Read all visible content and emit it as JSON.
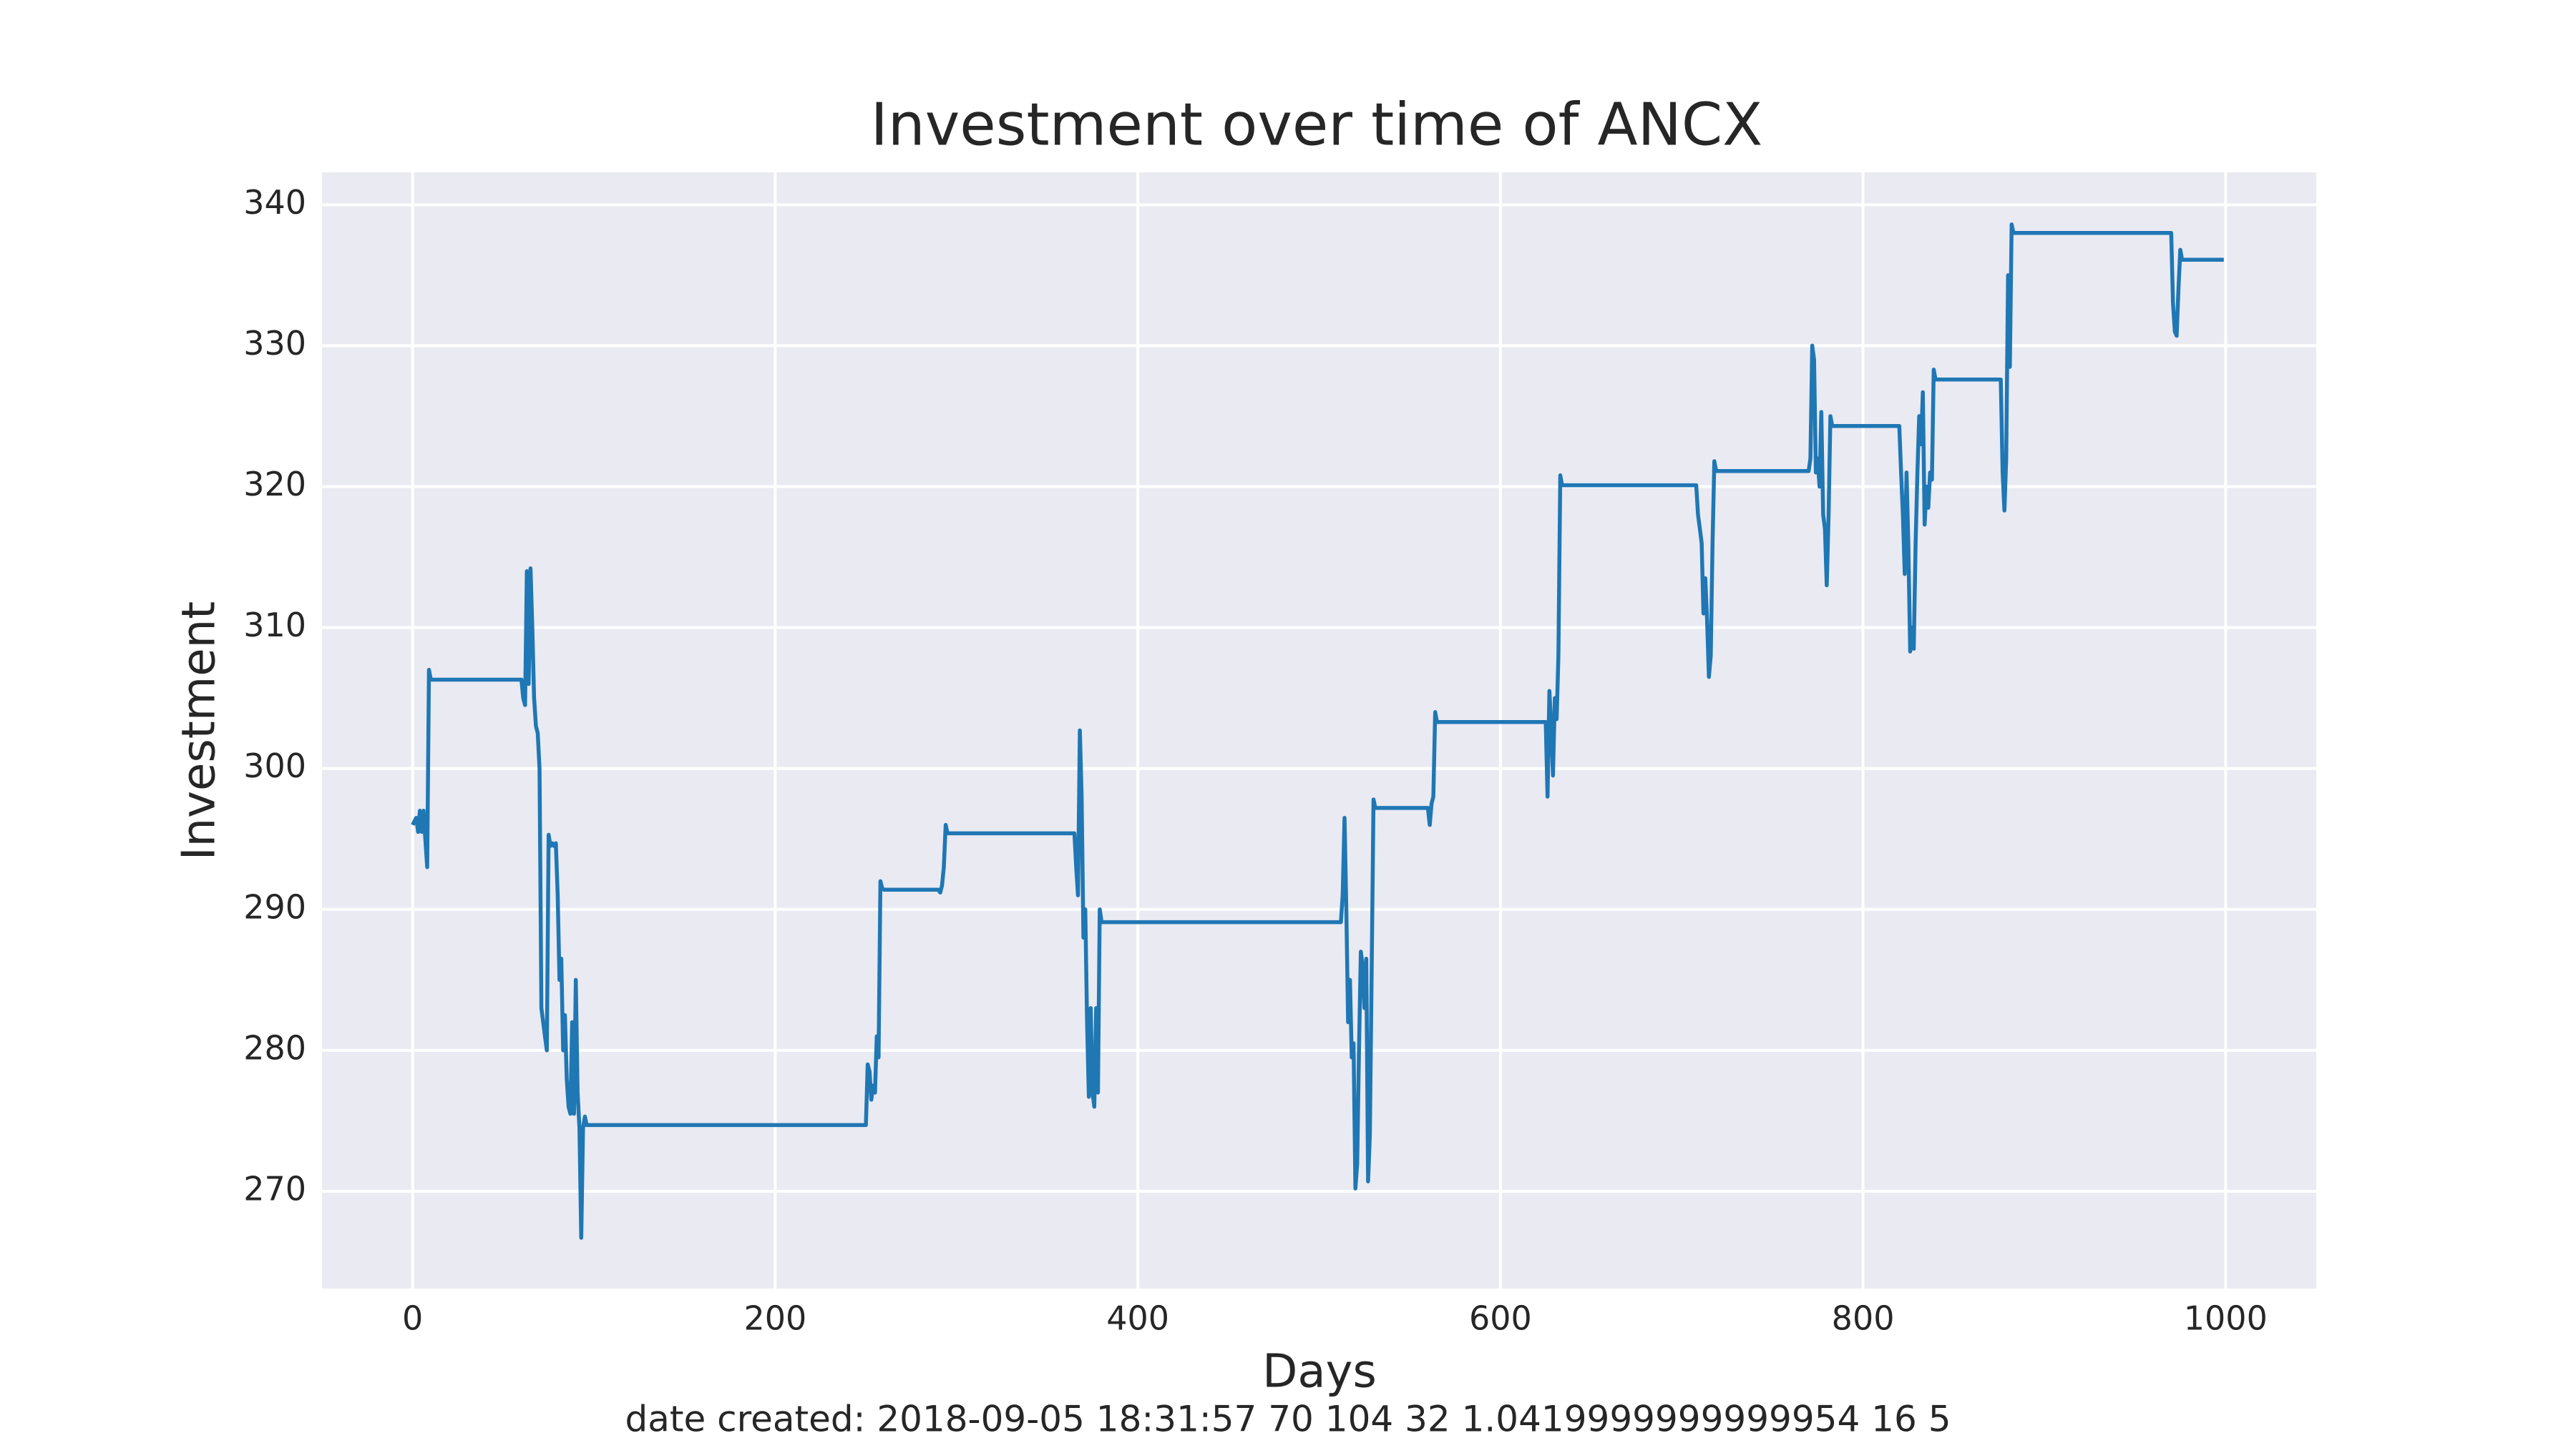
{
  "chart_data": {
    "type": "line",
    "title": "Investment over time of ANCX",
    "xlabel": "Days",
    "ylabel": "Investment",
    "footer": "date created: 2018-09-05 18:31:57 70 104 32 1.0419999999999954 16 5",
    "x": [
      0,
      2,
      3,
      4,
      5,
      6,
      7,
      8,
      9,
      10,
      60,
      61,
      62,
      63,
      64,
      65,
      66,
      67,
      68,
      69,
      70,
      71,
      72,
      73,
      74,
      75,
      76,
      77,
      78,
      79,
      80,
      81,
      82,
      83,
      84,
      85,
      86,
      87,
      88,
      89,
      90,
      91,
      92,
      93,
      94,
      95,
      96,
      250,
      251,
      252,
      253,
      254,
      255,
      256,
      257,
      258,
      259,
      260,
      290,
      291,
      292,
      293,
      294,
      295,
      365,
      366,
      367,
      368,
      369,
      370,
      371,
      372,
      373,
      374,
      375,
      376,
      377,
      378,
      379,
      380,
      512,
      513,
      514,
      515,
      516,
      517,
      518,
      519,
      520,
      521,
      522,
      523,
      524,
      525,
      526,
      527,
      528,
      529,
      530,
      531,
      560,
      561,
      562,
      563,
      564,
      565,
      625,
      626,
      627,
      628,
      629,
      630,
      631,
      632,
      633,
      634,
      708,
      709,
      710,
      711,
      712,
      713,
      714,
      715,
      716,
      717,
      718,
      719,
      770,
      771,
      772,
      773,
      774,
      775,
      776,
      777,
      778,
      779,
      780,
      781,
      782,
      783,
      820,
      821,
      822,
      823,
      824,
      825,
      826,
      827,
      828,
      829,
      830,
      831,
      832,
      833,
      834,
      835,
      836,
      837,
      838,
      839,
      840,
      876,
      877,
      878,
      879,
      880,
      881,
      882,
      883,
      970,
      971,
      972,
      973,
      974,
      975,
      976,
      999
    ],
    "series": [
      {
        "name": "Investment",
        "color": "#1f77b4",
        "values": [
          296,
          296.5,
          295.5,
          297,
          295.5,
          297,
          295,
          293,
          307,
          306.3,
          306.3,
          305,
          304.5,
          314,
          306,
          314.2,
          310,
          305,
          303,
          302.5,
          300,
          283,
          282,
          281,
          280,
          295.3,
          294.5,
          294.7,
          294.5,
          294.7,
          291,
          285,
          286.5,
          280,
          282.5,
          278,
          276,
          275.5,
          282,
          275.5,
          285,
          277,
          274.5,
          266.7,
          274.5,
          275.3,
          274.7,
          274.7,
          279,
          278.5,
          276.5,
          277.5,
          277,
          281,
          279.5,
          292,
          291.5,
          291.4,
          291.4,
          291.2,
          291.7,
          293,
          296,
          295.4,
          295.4,
          293,
          291,
          302.7,
          298,
          288,
          290,
          282,
          276.7,
          283,
          277,
          276,
          283,
          277,
          290,
          289.1,
          289.1,
          291,
          296.5,
          290,
          282,
          285,
          279.5,
          280.5,
          270.2,
          272,
          280,
          287,
          286,
          283,
          286.5,
          270.7,
          274,
          286,
          297.8,
          297.2,
          297.2,
          296,
          297.5,
          298,
          304,
          303.3,
          303.3,
          298,
          305.5,
          303,
          299.5,
          305,
          303.5,
          308,
          320.8,
          320.1,
          320.1,
          318,
          317,
          316,
          311,
          313.5,
          310.5,
          306.5,
          308,
          316,
          321.8,
          321.1,
          321.1,
          322,
          330,
          329,
          321,
          322,
          320,
          325.3,
          318,
          317,
          313,
          318,
          325,
          324.3,
          324.3,
          321,
          318,
          313.8,
          321,
          316,
          308.3,
          310,
          308.5,
          316,
          321,
          325,
          323,
          326.7,
          317.3,
          320,
          318.5,
          321,
          320.5,
          328.3,
          327.6,
          327.6,
          321,
          318.3,
          322,
          335,
          328.5,
          338.6,
          338,
          338,
          333,
          331,
          330.7,
          334,
          336.8,
          336.1,
          336.1
        ]
      }
    ],
    "xlim": [
      -50,
      1050
    ],
    "xticks": [
      0,
      200,
      400,
      600,
      800,
      1000
    ],
    "ylim": [
      263.1,
      342.3
    ],
    "yticks": [
      270,
      280,
      290,
      300,
      310,
      320,
      330,
      340
    ],
    "grid": true
  }
}
